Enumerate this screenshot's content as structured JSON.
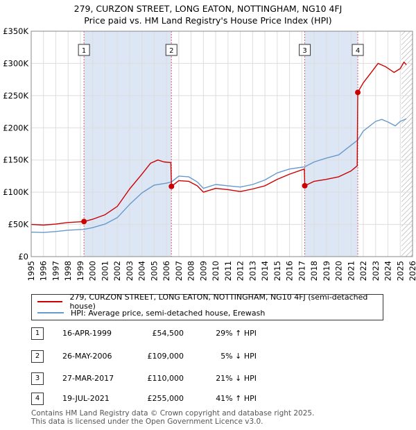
{
  "title_line1": "279, CURZON STREET, LONG EATON, NOTTINGHAM, NG10 4FJ",
  "title_line2": "Price paid vs. HM Land Registry's House Price Index (HPI)",
  "colors": {
    "price": "#cc0000",
    "hpi": "#6699cc",
    "shade": "#dce6f5",
    "grid": "#dddddd",
    "vline": "#e06060"
  },
  "chart_data": {
    "type": "line",
    "ylim": [
      0,
      350000
    ],
    "xlim": [
      1995,
      2026
    ],
    "y_ticks": [
      {
        "value": 0,
        "label": "£0"
      },
      {
        "value": 50000,
        "label": "£50K"
      },
      {
        "value": 100000,
        "label": "£100K"
      },
      {
        "value": 150000,
        "label": "£150K"
      },
      {
        "value": 200000,
        "label": "£200K"
      },
      {
        "value": 250000,
        "label": "£250K"
      },
      {
        "value": 300000,
        "label": "£300K"
      },
      {
        "value": 350000,
        "label": "£350K"
      }
    ],
    "x_ticks": [
      "1995",
      "1996",
      "1997",
      "1998",
      "1999",
      "2000",
      "2001",
      "2002",
      "2003",
      "2004",
      "2005",
      "2006",
      "2007",
      "2008",
      "2009",
      "2010",
      "2011",
      "2012",
      "2013",
      "2014",
      "2015",
      "2016",
      "2017",
      "2018",
      "2019",
      "2020",
      "2021",
      "2022",
      "2023",
      "2024",
      "2025",
      "2026"
    ],
    "shaded_periods": [
      [
        1999.29,
        2006.4
      ],
      [
        2017.24,
        2021.55
      ]
    ],
    "hatch_from": 2025.1,
    "series": [
      {
        "name": "279, CURZON STREET, LONG EATON, NOTTINGHAM, NG10 4FJ (semi-detached house)",
        "points": [
          [
            1995.0,
            50000
          ],
          [
            1996.0,
            49000
          ],
          [
            1997.0,
            50500
          ],
          [
            1998.0,
            53000
          ],
          [
            1999.29,
            54500
          ],
          [
            2000.0,
            58000
          ],
          [
            2001.0,
            65000
          ],
          [
            2002.0,
            78000
          ],
          [
            2003.0,
            105000
          ],
          [
            2004.0,
            128000
          ],
          [
            2004.7,
            145000
          ],
          [
            2005.3,
            150000
          ],
          [
            2005.8,
            147000
          ],
          [
            2006.35,
            146000
          ],
          [
            2006.4,
            109000
          ],
          [
            2007.0,
            118000
          ],
          [
            2007.8,
            117000
          ],
          [
            2008.5,
            110000
          ],
          [
            2009.0,
            100000
          ],
          [
            2010.0,
            106000
          ],
          [
            2011.0,
            104000
          ],
          [
            2012.0,
            101000
          ],
          [
            2013.0,
            105000
          ],
          [
            2014.0,
            110000
          ],
          [
            2015.0,
            120000
          ],
          [
            2016.0,
            128000
          ],
          [
            2017.2,
            136000
          ],
          [
            2017.24,
            110000
          ],
          [
            2018.0,
            117000
          ],
          [
            2019.0,
            120000
          ],
          [
            2020.0,
            124000
          ],
          [
            2021.0,
            133000
          ],
          [
            2021.5,
            141000
          ],
          [
            2021.55,
            255000
          ],
          [
            2022.0,
            270000
          ],
          [
            2022.6,
            285000
          ],
          [
            2023.2,
            300000
          ],
          [
            2023.8,
            295000
          ],
          [
            2024.5,
            286000
          ],
          [
            2025.0,
            292000
          ],
          [
            2025.3,
            302000
          ],
          [
            2025.5,
            298000
          ]
        ]
      },
      {
        "name": "HPI: Average price, semi-detached house, Erewash",
        "points": [
          [
            1995.0,
            38000
          ],
          [
            1996.0,
            37500
          ],
          [
            1997.0,
            39000
          ],
          [
            1998.0,
            41000
          ],
          [
            1999.29,
            42300
          ],
          [
            2000.0,
            45000
          ],
          [
            2001.0,
            50500
          ],
          [
            2002.0,
            60500
          ],
          [
            2003.0,
            81000
          ],
          [
            2004.0,
            99000
          ],
          [
            2005.0,
            111000
          ],
          [
            2006.0,
            114000
          ],
          [
            2006.4,
            116000
          ],
          [
            2007.0,
            125000
          ],
          [
            2007.8,
            124000
          ],
          [
            2008.5,
            116000
          ],
          [
            2009.0,
            106000
          ],
          [
            2010.0,
            112000
          ],
          [
            2011.0,
            110000
          ],
          [
            2012.0,
            108000
          ],
          [
            2013.0,
            112000
          ],
          [
            2014.0,
            119000
          ],
          [
            2015.0,
            130000
          ],
          [
            2016.0,
            136000
          ],
          [
            2017.24,
            139500
          ],
          [
            2018.0,
            147000
          ],
          [
            2019.0,
            153000
          ],
          [
            2020.0,
            158000
          ],
          [
            2021.0,
            173000
          ],
          [
            2021.55,
            181000
          ],
          [
            2022.0,
            195000
          ],
          [
            2023.0,
            210000
          ],
          [
            2023.5,
            213000
          ],
          [
            2024.0,
            209000
          ],
          [
            2024.6,
            203000
          ],
          [
            2025.0,
            210000
          ],
          [
            2025.5,
            214000
          ]
        ]
      }
    ],
    "sales": [
      {
        "id": "1",
        "x": 1999.29,
        "y": 54500
      },
      {
        "id": "2",
        "x": 2006.4,
        "y": 109000
      },
      {
        "id": "3",
        "x": 2017.24,
        "y": 110000
      },
      {
        "id": "4",
        "x": 2021.55,
        "y": 255000
      }
    ]
  },
  "legend": {
    "price_label": "279, CURZON STREET, LONG EATON, NOTTINGHAM, NG10 4FJ (semi-detached house)",
    "hpi_label": "HPI: Average price, semi-detached house, Erewash"
  },
  "transactions": [
    {
      "id": "1",
      "date": "16-APR-1999",
      "price": "£54,500",
      "hpi": "29% ↑ HPI"
    },
    {
      "id": "2",
      "date": "26-MAY-2006",
      "price": "£109,000",
      "hpi": "5% ↓ HPI"
    },
    {
      "id": "3",
      "date": "27-MAR-2017",
      "price": "£110,000",
      "hpi": "21% ↓ HPI"
    },
    {
      "id": "4",
      "date": "19-JUL-2021",
      "price": "£255,000",
      "hpi": "41% ↑ HPI"
    }
  ],
  "footer": {
    "line1": "Contains HM Land Registry data © Crown copyright and database right 2025.",
    "line2": "This data is licensed under the Open Government Licence v3.0."
  }
}
